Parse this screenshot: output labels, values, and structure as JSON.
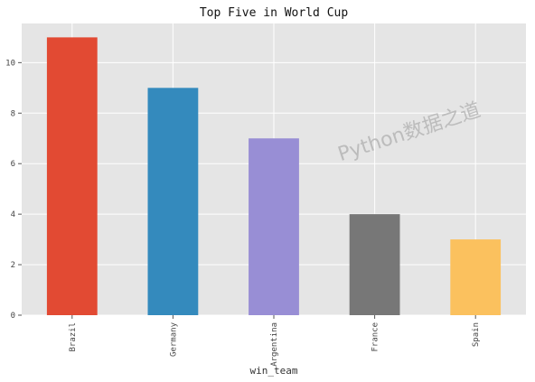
{
  "chart_data": {
    "type": "bar",
    "title": "Top Five in World Cup",
    "xlabel": "win_team",
    "ylabel": "",
    "categories": [
      "Brazil",
      "Germany",
      "Argentina",
      "France",
      "Spain"
    ],
    "values": [
      11,
      9,
      7,
      4,
      3
    ],
    "colors": [
      "#e24a33",
      "#348abd",
      "#988ed5",
      "#777777",
      "#fbc15e"
    ],
    "ylim": [
      0,
      11.55
    ],
    "yticks": [
      0,
      2,
      4,
      6,
      8,
      10
    ],
    "grid": true,
    "legend": "none"
  },
  "watermark": "Python数据之道",
  "style": {
    "plot_background": "#e5e5e5",
    "grid_color": "#ffffff"
  }
}
